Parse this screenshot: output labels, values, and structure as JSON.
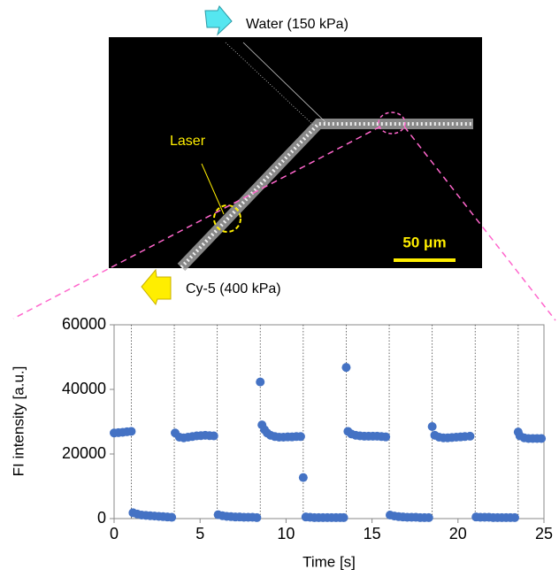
{
  "figure": {
    "water_label": "Water (150 kPa)",
    "cy5_label": "Cy-5 (400 kPa)",
    "laser_label": "Laser",
    "scale_label": "50 μm"
  },
  "chart_data": {
    "type": "scatter",
    "x_label": "Time [s]",
    "y_label": "FI intensity [a.u.]",
    "xlim": [
      0,
      25
    ],
    "xticks": [
      0,
      5,
      10,
      15,
      20,
      25
    ],
    "ylim": [
      0,
      60000
    ],
    "yticks": [
      0,
      20000,
      40000,
      60000
    ],
    "vlines": [
      1,
      3.5,
      6,
      8.5,
      11,
      13.5,
      16,
      18.5,
      21,
      23.5
    ],
    "series": [
      {
        "color": "#4472c4",
        "x": [
          0,
          0.25,
          0.5,
          0.75,
          1.0,
          1.1,
          1.35,
          1.6,
          1.85,
          2.1,
          2.35,
          2.6,
          2.85,
          3.1,
          3.35,
          3.55,
          3.8,
          4.05,
          4.3,
          4.55,
          4.8,
          5.05,
          5.3,
          5.55,
          5.8,
          6.05,
          6.3,
          6.55,
          6.8,
          7.05,
          7.3,
          7.55,
          7.8,
          8.05,
          8.3,
          8.5,
          8.6,
          8.75,
          8.9,
          9.1,
          9.35,
          9.6,
          9.85,
          10.1,
          10.35,
          10.6,
          10.85,
          11.0,
          11.15,
          11.4,
          11.65,
          11.9,
          12.15,
          12.4,
          12.65,
          12.9,
          13.15,
          13.35,
          13.5,
          13.6,
          13.8,
          14.05,
          14.3,
          14.55,
          14.8,
          15.05,
          15.3,
          15.55,
          15.8,
          16.05,
          16.3,
          16.55,
          16.8,
          17.05,
          17.3,
          17.55,
          17.8,
          18.05,
          18.3,
          18.5,
          18.65,
          18.9,
          19.15,
          19.4,
          19.65,
          19.9,
          20.15,
          20.4,
          20.7,
          21.05,
          21.3,
          21.55,
          21.8,
          22.05,
          22.3,
          22.55,
          22.8,
          23.05,
          23.3,
          23.5,
          23.6,
          23.85,
          24.1,
          24.35,
          24.6,
          24.85
        ],
        "values": [
          26500,
          26600,
          26700,
          26900,
          27000,
          1800,
          1400,
          1100,
          1000,
          900,
          800,
          700,
          600,
          500,
          400,
          26500,
          25200,
          25000,
          25200,
          25400,
          25600,
          25700,
          25800,
          25700,
          25600,
          1200,
          900,
          700,
          600,
          500,
          500,
          400,
          400,
          400,
          300,
          42300,
          29000,
          27500,
          26500,
          25800,
          25400,
          25200,
          25200,
          25300,
          25300,
          25400,
          25400,
          12700,
          500,
          400,
          300,
          300,
          300,
          300,
          300,
          300,
          300,
          300,
          46800,
          27000,
          26200,
          25800,
          25600,
          25500,
          25500,
          25500,
          25500,
          25400,
          25300,
          1100,
          800,
          600,
          500,
          400,
          400,
          400,
          300,
          300,
          300,
          28500,
          25800,
          25200,
          25000,
          25000,
          25100,
          25200,
          25300,
          25400,
          25500,
          500,
          400,
          400,
          400,
          300,
          300,
          300,
          300,
          300,
          300,
          26800,
          25600,
          25000,
          24800,
          24800,
          24800,
          24800
        ]
      }
    ]
  }
}
